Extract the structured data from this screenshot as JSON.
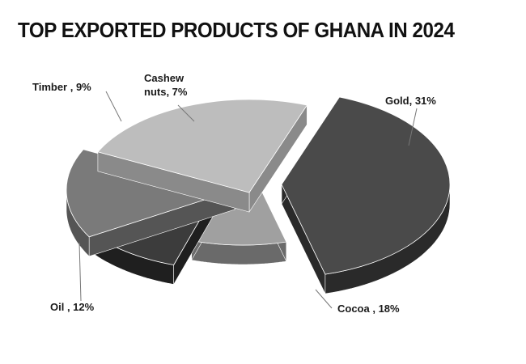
{
  "chart_data": {
    "type": "pie",
    "title": "TOP EXPORTED PRODUCTS OF GHANA IN 2024",
    "categories": [
      "Gold",
      "Cocoa",
      "Oil",
      "Timber",
      "Cashew nuts"
    ],
    "values": [
      31,
      18,
      12,
      9,
      7
    ],
    "unit": "%",
    "three_d": true,
    "exploded": true,
    "legend": "none",
    "data_labels": [
      {
        "line1": "Gold, 31%"
      },
      {
        "line1": "Cocoa , 18%"
      },
      {
        "line1": "Oil , 12%"
      },
      {
        "line1": "Timber , 9%"
      },
      {
        "line1": "Cashew",
        "line2": "nuts, 7%"
      }
    ],
    "colors": {
      "Gold": {
        "top": "#4a4a4a",
        "side": "#2a2a2a"
      },
      "Cocoa": {
        "top": "#bdbdbd",
        "side": "#8a8a8a"
      },
      "Oil": {
        "top": "#7a7a7a",
        "side": "#555555"
      },
      "Timber": {
        "top": "#3c3c3c",
        "side": "#1f1f1f"
      },
      "Cashew nuts": {
        "top": "#a0a0a0",
        "side": "#6a6a6a"
      }
    }
  }
}
